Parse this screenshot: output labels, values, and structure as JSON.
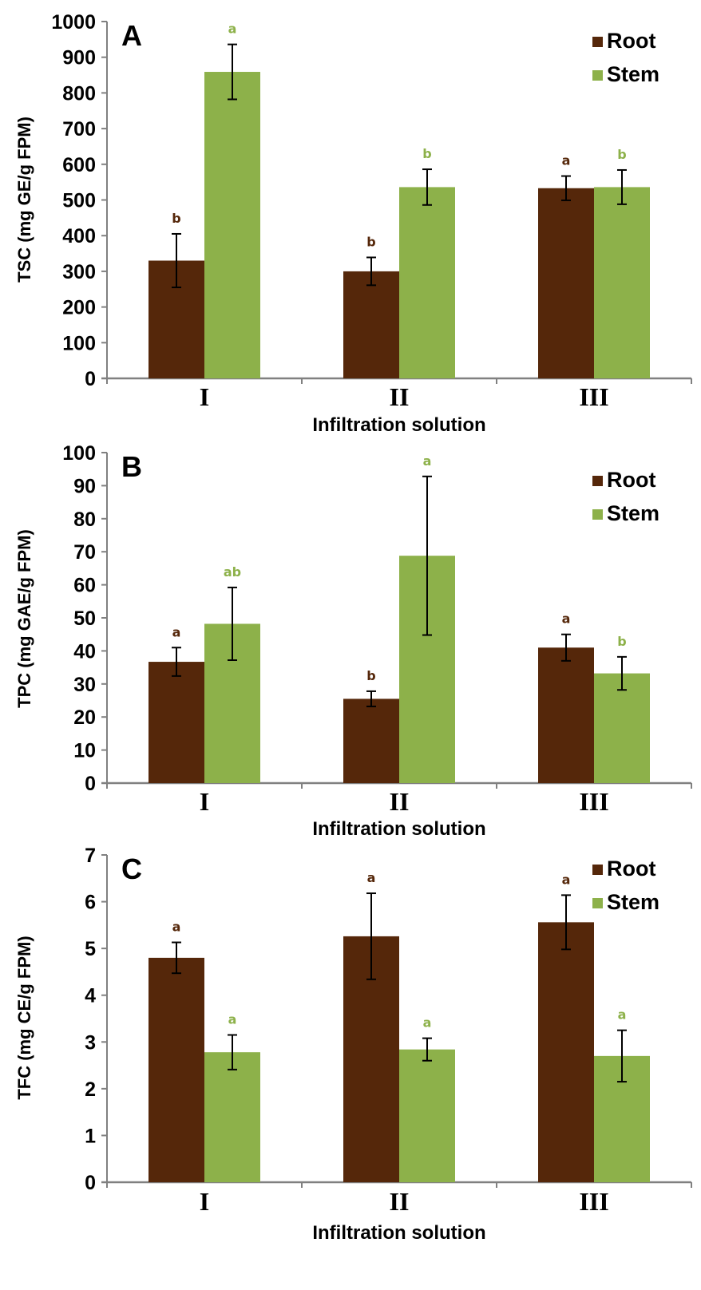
{
  "colors": {
    "root": "#55270A",
    "stem": "#8DB14A",
    "axis": "#808080",
    "error": "#000000"
  },
  "chart_data": [
    {
      "type": "bar",
      "panel": "A",
      "title": "",
      "xlabel": "Infiltration solution",
      "ylabel": "TSC (mg GE/g FPM)",
      "ylim": [
        0,
        1000
      ],
      "yticks": [
        0,
        100,
        200,
        300,
        400,
        500,
        600,
        700,
        800,
        900,
        1000
      ],
      "categories": [
        "I",
        "II",
        "III"
      ],
      "legend": {
        "position": "top-right",
        "entries": [
          "Root",
          "Stem"
        ]
      },
      "grid": false,
      "series": [
        {
          "name": "Root",
          "values": [
            330,
            300,
            533
          ],
          "errors": [
            75,
            39,
            34
          ],
          "letters": [
            "b",
            "b",
            "a"
          ]
        },
        {
          "name": "Stem",
          "values": [
            859,
            536,
            536
          ],
          "errors": [
            77,
            50,
            48
          ],
          "letters": [
            "a",
            "b",
            "b"
          ]
        }
      ]
    },
    {
      "type": "bar",
      "panel": "B",
      "title": "",
      "xlabel": "Infiltration solution",
      "ylabel": "TPC (mg GAE/g FPM)",
      "ylim": [
        0,
        100
      ],
      "yticks": [
        0,
        10,
        20,
        30,
        40,
        50,
        60,
        70,
        80,
        90,
        100
      ],
      "categories": [
        "I",
        "II",
        "III"
      ],
      "legend": {
        "position": "top-right",
        "entries": [
          "Root",
          "Stem"
        ]
      },
      "grid": false,
      "series": [
        {
          "name": "Root",
          "values": [
            36.7,
            25.5,
            41.0
          ],
          "errors": [
            4.3,
            2.3,
            4.0
          ],
          "letters": [
            "a",
            "b",
            "a"
          ]
        },
        {
          "name": "Stem",
          "values": [
            48.2,
            68.8,
            33.2
          ],
          "errors": [
            11.0,
            24.0,
            5.0
          ],
          "letters": [
            "ab",
            "a",
            "b"
          ]
        }
      ]
    },
    {
      "type": "bar",
      "panel": "C",
      "title": "",
      "xlabel": "Infiltration solution",
      "ylabel": "TFC (mg CE/g FPM)",
      "ylim": [
        0,
        7
      ],
      "yticks": [
        0,
        1,
        2,
        3,
        4,
        5,
        6,
        7
      ],
      "categories": [
        "I",
        "II",
        "III"
      ],
      "legend": {
        "position": "top-right",
        "entries": [
          "Root",
          "Stem"
        ]
      },
      "grid": false,
      "series": [
        {
          "name": "Root",
          "values": [
            4.8,
            5.26,
            5.56
          ],
          "errors": [
            0.33,
            0.92,
            0.58
          ],
          "letters": [
            "a",
            "a",
            "a"
          ]
        },
        {
          "name": "Stem",
          "values": [
            2.78,
            2.84,
            2.7
          ],
          "errors": [
            0.37,
            0.24,
            0.55
          ],
          "letters": [
            "a",
            "a",
            "a"
          ]
        }
      ]
    }
  ]
}
